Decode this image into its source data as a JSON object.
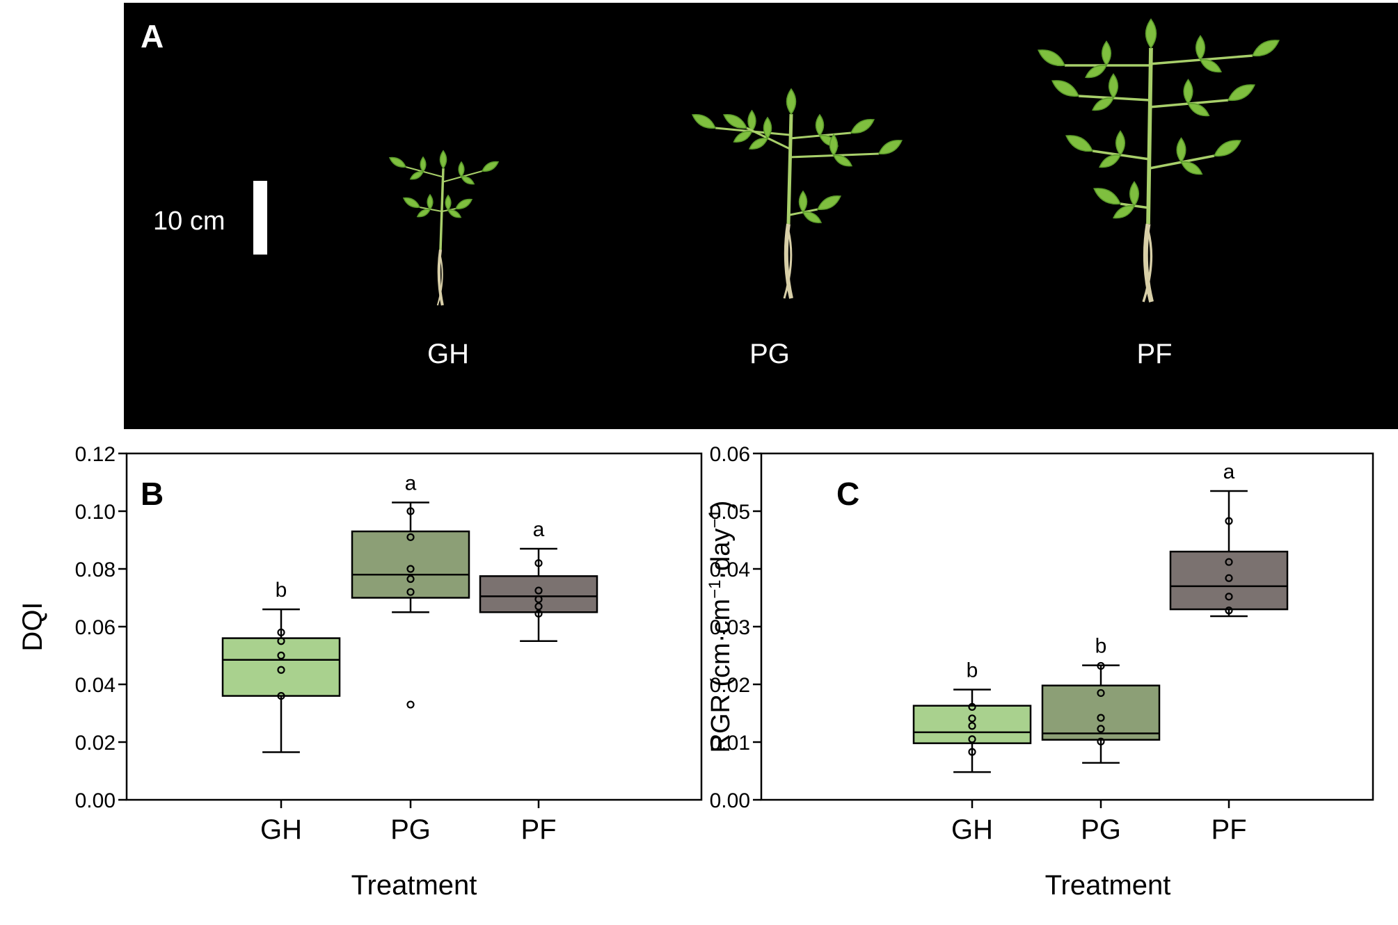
{
  "panel_a": {
    "label": "A",
    "scale_bar_label": "10 cm",
    "plants": [
      "GH",
      "PG",
      "PF"
    ],
    "colors": {
      "background": "#000000",
      "leaf": "#7fbf3f",
      "leaf_dark": "#5a9a2a",
      "stem": "#a8cf6a",
      "root": "#d8cfa8"
    }
  },
  "chart_data": [
    {
      "panel_label": "B",
      "type": "box",
      "ylabel": "DQI",
      "xlabel": "Treatment",
      "categories": [
        "GH",
        "PG",
        "PF"
      ],
      "ylim": [
        0,
        0.12
      ],
      "yticks": [
        0.0,
        0.02,
        0.04,
        0.06,
        0.08,
        0.1,
        0.12
      ],
      "yticklabels": [
        "0.00",
        "0.02",
        "0.04",
        "0.06",
        "0.08",
        "0.10",
        "0.12"
      ],
      "grid": false,
      "boxes": [
        {
          "category": "GH",
          "whisker_low": 0.0165,
          "q1": 0.036,
          "median": 0.0485,
          "q3": 0.056,
          "whisker_high": 0.066,
          "points": [
            0.036,
            0.045,
            0.05,
            0.055,
            0.058
          ],
          "outliers": [],
          "letter": "b",
          "color": "#a9d18e"
        },
        {
          "category": "PG",
          "whisker_low": 0.065,
          "q1": 0.07,
          "median": 0.078,
          "q3": 0.093,
          "whisker_high": 0.103,
          "points": [
            0.072,
            0.0765,
            0.08,
            0.091,
            0.1
          ],
          "outliers": [
            0.033
          ],
          "letter": "a",
          "color": "#8c9f76"
        },
        {
          "category": "PF",
          "whisker_low": 0.055,
          "q1": 0.065,
          "median": 0.0705,
          "q3": 0.0775,
          "whisker_high": 0.087,
          "points": [
            0.0645,
            0.067,
            0.0695,
            0.0725,
            0.082
          ],
          "outliers": [],
          "letter": "a",
          "color": "#7b7270"
        }
      ]
    },
    {
      "panel_label": "C",
      "type": "box",
      "ylabel_main": "RGR (cm·cm",
      "ylabel_sup1": "−1",
      "ylabel_mid": "·day",
      "ylabel_sup2": "−1",
      "ylabel_end": ")",
      "xlabel": "Treatment",
      "categories": [
        "GH",
        "PG",
        "PF"
      ],
      "ylim": [
        0,
        0.06
      ],
      "yticks": [
        0.0,
        0.01,
        0.02,
        0.03,
        0.04,
        0.05,
        0.06
      ],
      "yticklabels": [
        "0.00",
        "0.01",
        "0.02",
        "0.03",
        "0.04",
        "0.05",
        "0.06"
      ],
      "grid": false,
      "boxes": [
        {
          "category": "GH",
          "whisker_low": 0.0048,
          "q1": 0.0098,
          "median": 0.0117,
          "q3": 0.0163,
          "whisker_high": 0.0191,
          "points": [
            0.0083,
            0.0105,
            0.0128,
            0.0141,
            0.0161
          ],
          "outliers": [],
          "letter": "b",
          "color": "#a9d18e"
        },
        {
          "category": "PG",
          "whisker_low": 0.0064,
          "q1": 0.0104,
          "median": 0.0115,
          "q3": 0.0198,
          "whisker_high": 0.0233,
          "points": [
            0.0101,
            0.0123,
            0.0142,
            0.0185,
            0.0232
          ],
          "outliers": [],
          "letter": "b",
          "color": "#8c9f76"
        },
        {
          "category": "PF",
          "whisker_low": 0.0318,
          "q1": 0.033,
          "median": 0.037,
          "q3": 0.043,
          "whisker_high": 0.0535,
          "points": [
            0.0328,
            0.0352,
            0.0384,
            0.0412,
            0.0483
          ],
          "outliers": [],
          "letter": "a",
          "color": "#7b7270"
        }
      ]
    }
  ]
}
